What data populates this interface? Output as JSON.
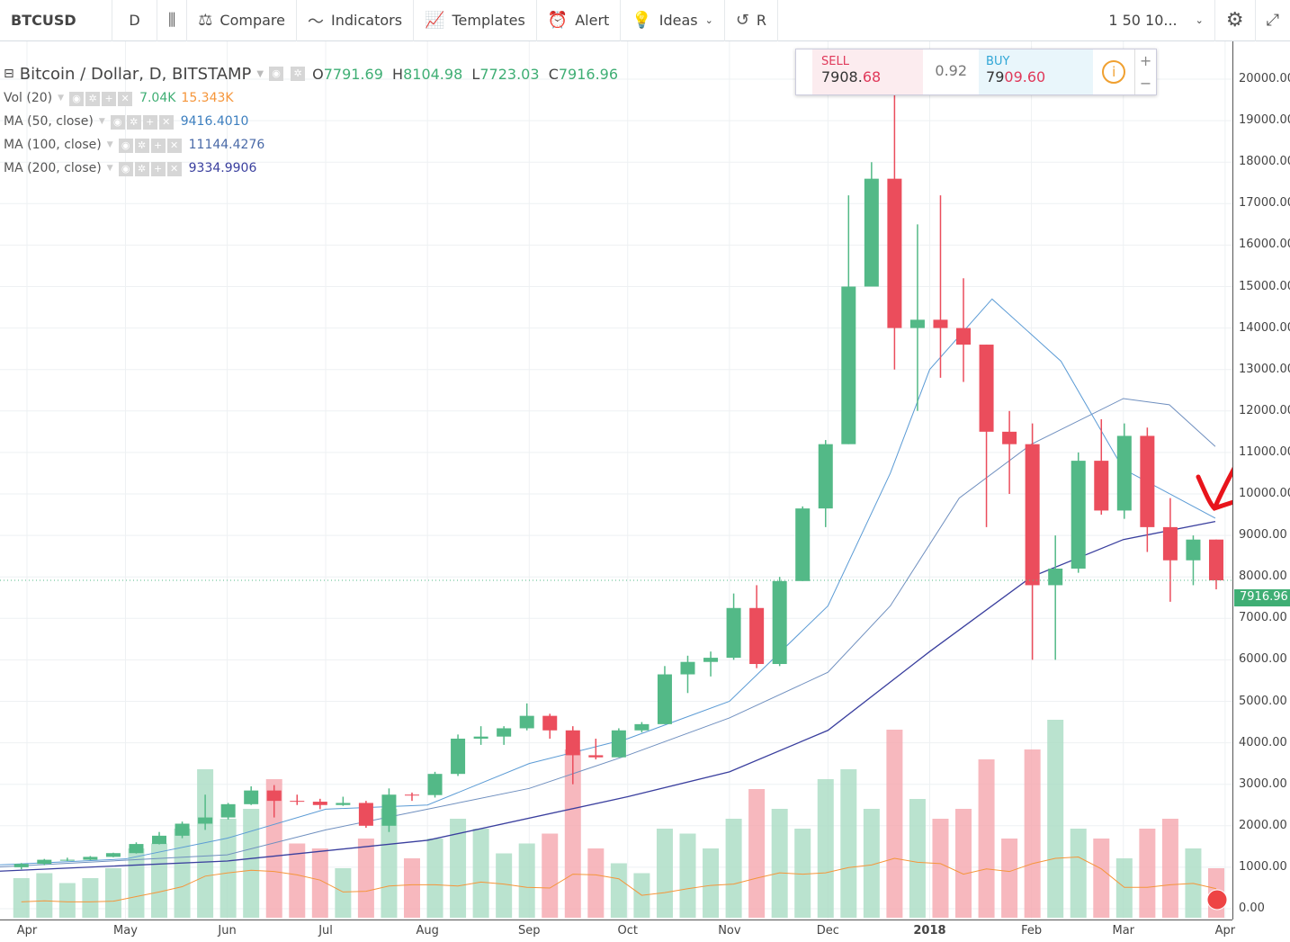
{
  "toolbar": {
    "symbol": "BTCUSD",
    "interval": "D",
    "compare": "Compare",
    "indicators": "Indicators",
    "templates": "Templates",
    "alert": "Alert",
    "ideas": "Ideas",
    "replay_partial": "R",
    "layout_partial": "1 50 10..."
  },
  "trade_widget": {
    "sell_label": "SELL",
    "sell_price_main": "7908.",
    "sell_price_tail": "68",
    "spread": "0.92",
    "buy_label": "BUY",
    "buy_price_main": "79",
    "buy_price_tail": "09.60",
    "plus": "+",
    "minus": "−"
  },
  "legend": {
    "title": "Bitcoin / Dollar, D, BITSTAMP",
    "ohlc": {
      "o_label": "O",
      "o": "7791.69",
      "h_label": "H",
      "h": "8104.98",
      "l_label": "L",
      "l": "7723.03",
      "c_label": "C",
      "c": "7916.96"
    },
    "vol": {
      "label": "Vol (20)",
      "v1": "7.04K",
      "v2": "15.343K"
    },
    "ma50": {
      "label": "MA (50, close)",
      "value": "9416.4010"
    },
    "ma100": {
      "label": "MA (100, close)",
      "value": "11144.4276"
    },
    "ma200": {
      "label": "MA (200, close)",
      "value": "9334.9906"
    }
  },
  "last_price": "7916.96",
  "colors": {
    "up": "#53b987",
    "down": "#eb4d5c",
    "vol_up": "#a9dcc3",
    "vol_down": "#f5a6ae",
    "ma50": "#5b9bd5",
    "ma100": "#6f8fbf",
    "ma200": "#3a3f9e",
    "vol_ma": "#f5953a",
    "annotation": "#e8141b"
  },
  "chart_data": {
    "type": "candlestick",
    "ylim": [
      0,
      20500
    ],
    "yticks": [
      "0.00",
      "1000.00",
      "2000.00",
      "3000.00",
      "4000.00",
      "5000.00",
      "6000.00",
      "7000.00",
      "8000.00",
      "9000.00",
      "10000.00",
      "11000.00",
      "12000.00",
      "13000.00",
      "14000.00",
      "15000.00",
      "16000.00",
      "17000.00",
      "18000.00",
      "19000.00",
      "20000.00"
    ],
    "xticks": [
      {
        "label": "Apr",
        "date": "2017-04-01"
      },
      {
        "label": "May",
        "date": "2017-05-01"
      },
      {
        "label": "Jun",
        "date": "2017-06-01"
      },
      {
        "label": "Jul",
        "date": "2017-07-01"
      },
      {
        "label": "Aug",
        "date": "2017-08-01"
      },
      {
        "label": "Sep",
        "date": "2017-09-01"
      },
      {
        "label": "Oct",
        "date": "2017-10-01"
      },
      {
        "label": "Nov",
        "date": "2017-11-01"
      },
      {
        "label": "Dec",
        "date": "2017-12-01"
      },
      {
        "label": "2018",
        "date": "2018-01-01"
      },
      {
        "label": "Feb",
        "date": "2018-02-01"
      },
      {
        "label": "Mar",
        "date": "2018-03-01"
      },
      {
        "label": "Apr",
        "date": "2018-04-01"
      }
    ],
    "candles": [
      [
        "2017-03-27",
        1000,
        1100,
        950,
        1080,
        8
      ],
      [
        "2017-04-03",
        1080,
        1200,
        1050,
        1180,
        9
      ],
      [
        "2017-04-10",
        1180,
        1230,
        1150,
        1180,
        7
      ],
      [
        "2017-04-17",
        1180,
        1270,
        1170,
        1250,
        8
      ],
      [
        "2017-04-24",
        1250,
        1350,
        1240,
        1340,
        10
      ],
      [
        "2017-05-01",
        1340,
        1600,
        1330,
        1560,
        14
      ],
      [
        "2017-05-08",
        1560,
        1850,
        1550,
        1760,
        15
      ],
      [
        "2017-05-15",
        1760,
        2100,
        1700,
        2050,
        18
      ],
      [
        "2017-05-22",
        2050,
        2750,
        1900,
        2200,
        30
      ],
      [
        "2017-05-29",
        2200,
        2550,
        2150,
        2520,
        20
      ],
      [
        "2017-06-05",
        2520,
        2950,
        2500,
        2850,
        22
      ],
      [
        "2017-06-12",
        2850,
        2980,
        2200,
        2600,
        28
      ],
      [
        "2017-06-19",
        2600,
        2750,
        2500,
        2580,
        15
      ],
      [
        "2017-06-26",
        2580,
        2650,
        2400,
        2500,
        14
      ],
      [
        "2017-07-03",
        2500,
        2700,
        2480,
        2550,
        10
      ],
      [
        "2017-07-10",
        2550,
        2600,
        1950,
        2000,
        16
      ],
      [
        "2017-07-17",
        2000,
        2900,
        1850,
        2750,
        22
      ],
      [
        "2017-07-24",
        2750,
        2800,
        2600,
        2740,
        12
      ],
      [
        "2017-07-31",
        2740,
        3300,
        2680,
        3250,
        16
      ],
      [
        "2017-08-07",
        3250,
        4200,
        3200,
        4100,
        20
      ],
      [
        "2017-08-14",
        4100,
        4400,
        3950,
        4150,
        18
      ],
      [
        "2017-08-21",
        4150,
        4400,
        3950,
        4350,
        13
      ],
      [
        "2017-08-28",
        4350,
        4950,
        4300,
        4650,
        15
      ],
      [
        "2017-09-04",
        4650,
        4700,
        4100,
        4300,
        17
      ],
      [
        "2017-09-11",
        4300,
        4400,
        3000,
        3700,
        34
      ],
      [
        "2017-09-18",
        3700,
        4100,
        3600,
        3650,
        14
      ],
      [
        "2017-09-25",
        3650,
        4350,
        3650,
        4300,
        11
      ],
      [
        "2017-10-02",
        4300,
        4500,
        4250,
        4450,
        9
      ],
      [
        "2017-10-09",
        4450,
        5850,
        4450,
        5650,
        18
      ],
      [
        "2017-10-16",
        5650,
        6100,
        5200,
        5950,
        17
      ],
      [
        "2017-10-23",
        5950,
        6200,
        5600,
        6050,
        14
      ],
      [
        "2017-10-30",
        6050,
        7600,
        6000,
        7250,
        20
      ],
      [
        "2017-11-06",
        7250,
        7800,
        5800,
        5900,
        26
      ],
      [
        "2017-11-13",
        5900,
        8000,
        5850,
        7900,
        22
      ],
      [
        "2017-11-20",
        7900,
        9700,
        7900,
        9650,
        18
      ],
      [
        "2017-11-27",
        9650,
        11300,
        9200,
        11200,
        28
      ],
      [
        "2017-12-04",
        11200,
        17200,
        11200,
        15000,
        30
      ],
      [
        "2017-12-11",
        15000,
        18000,
        15000,
        17600,
        22
      ],
      [
        "2017-12-18",
        17600,
        19700,
        13000,
        14000,
        38
      ],
      [
        "2017-12-25",
        14000,
        16500,
        12000,
        14200,
        24
      ],
      [
        "2018-01-01",
        14200,
        17200,
        12800,
        14000,
        20
      ],
      [
        "2018-01-08",
        14000,
        15200,
        12700,
        13600,
        22
      ],
      [
        "2018-01-15",
        13600,
        13600,
        9200,
        11500,
        32
      ],
      [
        "2018-01-22",
        11500,
        12000,
        10000,
        11200,
        16
      ],
      [
        "2018-01-29",
        11200,
        11700,
        6000,
        7800,
        34
      ],
      [
        "2018-02-05",
        7800,
        9000,
        6000,
        8200,
        40
      ],
      [
        "2018-02-12",
        8200,
        11000,
        8100,
        10800,
        18
      ],
      [
        "2018-02-19",
        10800,
        11800,
        9500,
        9600,
        16
      ],
      [
        "2018-02-26",
        9600,
        11700,
        9400,
        11400,
        12
      ],
      [
        "2018-03-05",
        11400,
        11600,
        8600,
        9200,
        18
      ],
      [
        "2018-03-12",
        9200,
        9900,
        7400,
        8400,
        20
      ],
      [
        "2018-03-19",
        8400,
        9000,
        7800,
        8900,
        14
      ],
      [
        "2018-03-26",
        8900,
        8900,
        7700,
        7917,
        10
      ]
    ],
    "ma50": [
      [
        "2017-03-22",
        1050
      ],
      [
        "2017-05-01",
        1200
      ],
      [
        "2017-06-01",
        1700
      ],
      [
        "2017-07-01",
        2400
      ],
      [
        "2017-08-01",
        2500
      ],
      [
        "2017-09-01",
        3500
      ],
      [
        "2017-10-01",
        4100
      ],
      [
        "2017-11-01",
        5000
      ],
      [
        "2017-12-01",
        7300
      ],
      [
        "2017-12-20",
        10500
      ],
      [
        "2018-01-01",
        13000
      ],
      [
        "2018-01-20",
        14700
      ],
      [
        "2018-02-10",
        13200
      ],
      [
        "2018-03-01",
        10600
      ],
      [
        "2018-03-29",
        9416
      ]
    ],
    "ma100": [
      [
        "2017-03-22",
        1000
      ],
      [
        "2017-06-01",
        1300
      ],
      [
        "2017-07-01",
        1900
      ],
      [
        "2017-08-01",
        2400
      ],
      [
        "2017-09-01",
        2900
      ],
      [
        "2017-10-01",
        3700
      ],
      [
        "2017-11-01",
        4600
      ],
      [
        "2017-12-01",
        5700
      ],
      [
        "2017-12-20",
        7300
      ],
      [
        "2018-01-10",
        9900
      ],
      [
        "2018-02-01",
        11200
      ],
      [
        "2018-03-01",
        12300
      ],
      [
        "2018-03-15",
        12150
      ],
      [
        "2018-03-29",
        11144
      ]
    ],
    "ma200": [
      [
        "2017-03-22",
        900
      ],
      [
        "2017-06-01",
        1150
      ],
      [
        "2017-08-01",
        1650
      ],
      [
        "2017-10-01",
        2700
      ],
      [
        "2017-11-01",
        3300
      ],
      [
        "2017-12-01",
        4300
      ],
      [
        "2018-01-01",
        6200
      ],
      [
        "2018-02-01",
        8000
      ],
      [
        "2018-03-01",
        8900
      ],
      [
        "2018-03-29",
        9335
      ]
    ]
  }
}
